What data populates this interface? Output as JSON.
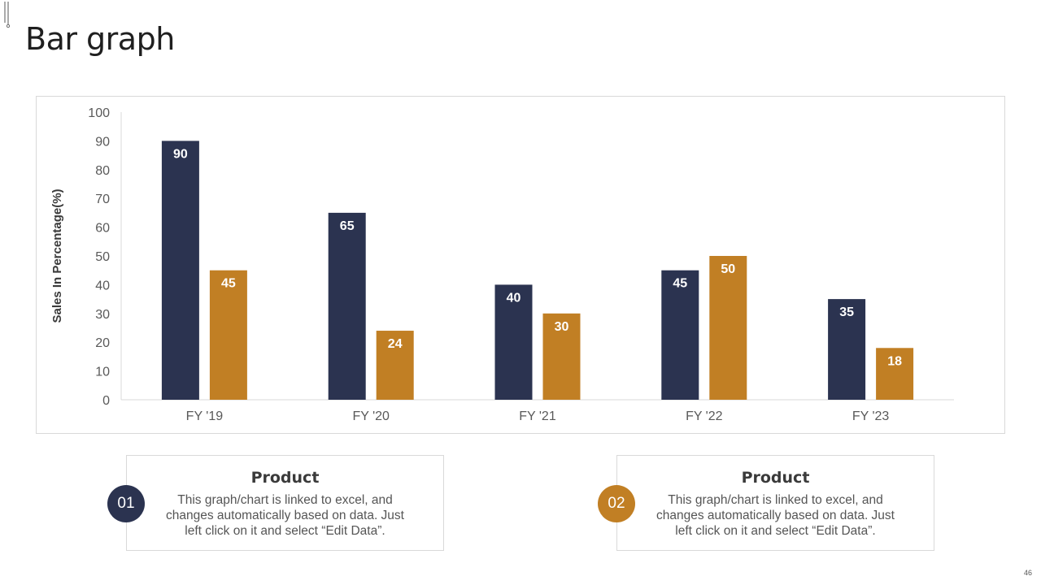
{
  "slide": {
    "title": "Bar graph",
    "page_number": "46"
  },
  "colors": {
    "series1": "#2b3350",
    "series2": "#c17f24",
    "axis": "#d9d9d9",
    "text": "#595959"
  },
  "chart_data": {
    "type": "bar",
    "title": "",
    "xlabel": "",
    "ylabel": "Sales In Percentage(%)",
    "ylim": [
      0,
      100
    ],
    "yticks": [
      0,
      10,
      20,
      30,
      40,
      50,
      60,
      70,
      80,
      90,
      100
    ],
    "categories": [
      "FY '19",
      "FY '20",
      "FY '21",
      "FY '22",
      "FY '23"
    ],
    "series": [
      {
        "name": "Product 01",
        "values": [
          90,
          65,
          40,
          45,
          35
        ]
      },
      {
        "name": "Product 02",
        "values": [
          45,
          24,
          30,
          50,
          18
        ]
      }
    ],
    "grid": false,
    "legend": "none"
  },
  "cards": [
    {
      "number": "01",
      "title": "Product",
      "text": "This graph/chart is linked to excel, and changes automatically based on data. Just left click on it and select “Edit Data”."
    },
    {
      "number": "02",
      "title": "Product",
      "text": "This graph/chart is linked to excel, and changes automatically based on data. Just left click on it and select “Edit Data”."
    }
  ]
}
